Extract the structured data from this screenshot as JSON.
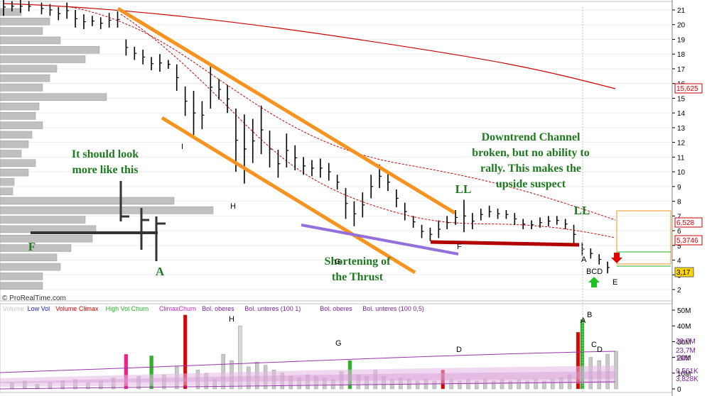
{
  "watermark": "© ProRealTime.com",
  "price_axis_ticks": [
    "21",
    "20",
    "19",
    "18",
    "17",
    "16",
    "15",
    "14",
    "13",
    "12",
    "11",
    "10",
    "9",
    "8",
    "7",
    "6",
    "5",
    "4",
    "3",
    "2"
  ],
  "price_axis_badges": {
    "ma_long": "15,625",
    "ma_mid": "6,528",
    "ma_short": "5,3746",
    "last": "3,17"
  },
  "annotations": {
    "should_look_1": "It should look",
    "should_look_2": "more like this",
    "downtrend_1": "Downtrend Channel",
    "downtrend_2": "broken, but no ability to",
    "downtrend_3": "rally.  This makes the",
    "downtrend_4": "upside suspect",
    "shortening_1": "Shortening of",
    "shortening_2": "the Thrust",
    "ll_1": "LL",
    "ll_2": "LL",
    "F_green": "F",
    "A_green": "A"
  },
  "price_points": {
    "I": "I",
    "H": "H",
    "G": "G",
    "F": "F",
    "A": "A",
    "BCD": "BCD",
    "E": "E"
  },
  "volume_panel": {
    "legend": [
      {
        "text": "Volume",
        "color": "#c8c8c8"
      },
      {
        "text": "Low Vol",
        "color": "#2020c0"
      },
      {
        "text": "Volume Climax",
        "color": "#e00000"
      },
      {
        "text": "High Vol Churn",
        "color": "#20b020"
      },
      {
        "text": "ClimaxChurn",
        "color": "#d020d0"
      },
      {
        "text": "Bol. oberes",
        "color": "#8020a0"
      },
      {
        "text": "Bol. unteres (100 1)",
        "color": "#8020a0"
      },
      {
        "text": "Bol. oberes",
        "color": "#8020a0"
      },
      {
        "text": "Bol. unteres (100 0,5)",
        "color": "#8020a0"
      }
    ],
    "axis_ticks": [
      "50M",
      "40M",
      "30M",
      "20M",
      "10M",
      "0"
    ],
    "badges": [
      "29,7M",
      "23,7M",
      "19M",
      "9,561K",
      "3,828K"
    ],
    "labels": {
      "H": "H",
      "G": "G",
      "D1": "D",
      "A": "A",
      "B": "B",
      "C": "C",
      "D2": "D"
    }
  },
  "chart_data": {
    "type": "ohlc",
    "y_range": [
      1.5,
      21.5
    ],
    "x_index_range": [
      0,
      145
    ],
    "bars": [
      {
        "i": 0,
        "h": 21.8,
        "l": 20.6
      },
      {
        "i": 2,
        "h": 21.6,
        "l": 20.9
      },
      {
        "i": 4,
        "h": 21.7,
        "l": 20.8
      },
      {
        "i": 6,
        "h": 21.6,
        "l": 20.9
      },
      {
        "i": 9,
        "h": 21.5,
        "l": 20.7
      },
      {
        "i": 11,
        "h": 21.4,
        "l": 20.6
      },
      {
        "i": 13,
        "h": 21.2,
        "l": 20.3
      },
      {
        "i": 15,
        "h": 21.5,
        "l": 20.4
      },
      {
        "i": 17,
        "h": 21.0,
        "l": 19.8
      },
      {
        "i": 19,
        "h": 20.7,
        "l": 19.7
      },
      {
        "i": 21,
        "h": 20.6,
        "l": 19.9
      },
      {
        "i": 23,
        "h": 20.5,
        "l": 19.7
      },
      {
        "i": 25,
        "h": 20.8,
        "l": 19.8
      },
      {
        "i": 27,
        "h": 20.9,
        "l": 19.8
      },
      {
        "i": 29,
        "h": 19.0,
        "l": 17.9
      },
      {
        "i": 31,
        "h": 18.5,
        "l": 17.6
      },
      {
        "i": 33,
        "h": 18.3,
        "l": 17.3
      },
      {
        "i": 35,
        "h": 17.8,
        "l": 16.9
      },
      {
        "i": 37,
        "h": 18.0,
        "l": 16.8
      },
      {
        "i": 39,
        "h": 17.6,
        "l": 17.0
      },
      {
        "i": 41,
        "h": 17.3,
        "l": 15.5
      },
      {
        "i": 43,
        "h": 15.8,
        "l": 13.8
      },
      {
        "i": 45,
        "h": 15.5,
        "l": 12.5
      },
      {
        "i": 47,
        "h": 14.8,
        "l": 12.9
      },
      {
        "i": 49,
        "h": 17.2,
        "l": 14.3
      },
      {
        "i": 51,
        "h": 16.3,
        "l": 14.9
      },
      {
        "i": 53,
        "h": 15.9,
        "l": 14.0
      },
      {
        "i": 55,
        "h": 14.3,
        "l": 10.0
      },
      {
        "i": 57,
        "h": 13.9,
        "l": 9.2
      },
      {
        "i": 59,
        "h": 13.6,
        "l": 10.6
      },
      {
        "i": 61,
        "h": 14.5,
        "l": 11.2
      },
      {
        "i": 63,
        "h": 12.8,
        "l": 10.3
      },
      {
        "i": 65,
        "h": 11.5,
        "l": 9.6
      },
      {
        "i": 67,
        "h": 12.6,
        "l": 10.3
      },
      {
        "i": 69,
        "h": 11.8,
        "l": 10.1
      },
      {
        "i": 71,
        "h": 11.0,
        "l": 9.8
      },
      {
        "i": 73,
        "h": 10.8,
        "l": 9.7
      },
      {
        "i": 75,
        "h": 10.9,
        "l": 9.6
      },
      {
        "i": 77,
        "h": 10.6,
        "l": 9.4
      },
      {
        "i": 79,
        "h": 9.8,
        "l": 8.8
      },
      {
        "i": 81,
        "h": 8.9,
        "l": 6.8
      },
      {
        "i": 83,
        "h": 8.0,
        "l": 6.3
      },
      {
        "i": 85,
        "h": 8.6,
        "l": 6.9
      },
      {
        "i": 87,
        "h": 9.8,
        "l": 8.2
      },
      {
        "i": 89,
        "h": 10.5,
        "l": 8.9
      },
      {
        "i": 91,
        "h": 9.9,
        "l": 8.7
      },
      {
        "i": 93,
        "h": 8.8,
        "l": 7.6
      },
      {
        "i": 95,
        "h": 7.9,
        "l": 6.7
      },
      {
        "i": 97,
        "h": 7.0,
        "l": 6.2
      },
      {
        "i": 99,
        "h": 6.4,
        "l": 5.5
      },
      {
        "i": 101,
        "h": 6.2,
        "l": 5.3
      },
      {
        "i": 103,
        "h": 6.7,
        "l": 5.5
      },
      {
        "i": 105,
        "h": 7.0,
        "l": 6.1
      },
      {
        "i": 107,
        "h": 7.4,
        "l": 6.4
      },
      {
        "i": 109,
        "h": 8.1,
        "l": 5.9
      },
      {
        "i": 111,
        "h": 7.2,
        "l": 6.1
      },
      {
        "i": 113,
        "h": 7.5,
        "l": 6.7
      },
      {
        "i": 115,
        "h": 7.7,
        "l": 6.9
      },
      {
        "i": 117,
        "h": 7.5,
        "l": 6.8
      },
      {
        "i": 119,
        "h": 7.4,
        "l": 6.8
      },
      {
        "i": 121,
        "h": 7.2,
        "l": 6.4
      },
      {
        "i": 123,
        "h": 6.8,
        "l": 6.1
      },
      {
        "i": 125,
        "h": 6.7,
        "l": 6.1
      },
      {
        "i": 127,
        "h": 6.9,
        "l": 6.2
      },
      {
        "i": 129,
        "h": 7.0,
        "l": 6.3
      },
      {
        "i": 131,
        "h": 7.0,
        "l": 6.4
      },
      {
        "i": 133,
        "h": 6.8,
        "l": 6.1
      },
      {
        "i": 135,
        "h": 6.4,
        "l": 5.1
      },
      {
        "i": 137,
        "h": 5.2,
        "l": 4.3
      },
      {
        "i": 139,
        "h": 4.8,
        "l": 4.1
      },
      {
        "i": 141,
        "h": 4.4,
        "l": 3.7
      },
      {
        "i": 143,
        "h": 3.9,
        "l": 3.1
      }
    ],
    "volume_bars": [
      {
        "i": 2,
        "v": 4
      },
      {
        "i": 5,
        "v": 5
      },
      {
        "i": 8,
        "v": 3
      },
      {
        "i": 11,
        "v": 4
      },
      {
        "i": 14,
        "v": 5
      },
      {
        "i": 17,
        "v": 6
      },
      {
        "i": 20,
        "v": 4
      },
      {
        "i": 23,
        "v": 5
      },
      {
        "i": 26,
        "v": 7
      },
      {
        "i": 29,
        "v": 22
      },
      {
        "i": 32,
        "v": 8
      },
      {
        "i": 35,
        "v": 21
      },
      {
        "i": 38,
        "v": 9
      },
      {
        "i": 41,
        "v": 14
      },
      {
        "i": 43,
        "v": 47
      },
      {
        "i": 46,
        "v": 12
      },
      {
        "i": 48,
        "v": 10
      },
      {
        "i": 50,
        "v": 6
      },
      {
        "i": 52,
        "v": 22
      },
      {
        "i": 54,
        "v": 18
      },
      {
        "i": 56,
        "v": 40
      },
      {
        "i": 58,
        "v": 14
      },
      {
        "i": 60,
        "v": 17
      },
      {
        "i": 62,
        "v": 15
      },
      {
        "i": 64,
        "v": 12
      },
      {
        "i": 66,
        "v": 10
      },
      {
        "i": 68,
        "v": 8
      },
      {
        "i": 70,
        "v": 7
      },
      {
        "i": 72,
        "v": 9
      },
      {
        "i": 74,
        "v": 8
      },
      {
        "i": 76,
        "v": 7
      },
      {
        "i": 78,
        "v": 6
      },
      {
        "i": 80,
        "v": 11
      },
      {
        "i": 82,
        "v": 18
      },
      {
        "i": 84,
        "v": 9
      },
      {
        "i": 86,
        "v": 8
      },
      {
        "i": 88,
        "v": 12
      },
      {
        "i": 90,
        "v": 8
      },
      {
        "i": 92,
        "v": 6
      },
      {
        "i": 94,
        "v": 7
      },
      {
        "i": 96,
        "v": 6
      },
      {
        "i": 98,
        "v": 5
      },
      {
        "i": 100,
        "v": 6
      },
      {
        "i": 102,
        "v": 5
      },
      {
        "i": 104,
        "v": 12
      },
      {
        "i": 106,
        "v": 6
      },
      {
        "i": 108,
        "v": 5
      },
      {
        "i": 110,
        "v": 6
      },
      {
        "i": 112,
        "v": 5
      },
      {
        "i": 114,
        "v": 6
      },
      {
        "i": 116,
        "v": 5
      },
      {
        "i": 118,
        "v": 6
      },
      {
        "i": 120,
        "v": 5
      },
      {
        "i": 122,
        "v": 6
      },
      {
        "i": 124,
        "v": 5
      },
      {
        "i": 126,
        "v": 6
      },
      {
        "i": 128,
        "v": 5
      },
      {
        "i": 130,
        "v": 6
      },
      {
        "i": 132,
        "v": 7
      },
      {
        "i": 134,
        "v": 9
      },
      {
        "i": 136,
        "v": 36
      },
      {
        "i": 137,
        "v": 44
      },
      {
        "i": 139,
        "v": 20
      },
      {
        "i": 141,
        "v": 18
      },
      {
        "i": 143,
        "v": 22
      },
      {
        "i": 145,
        "v": 24
      }
    ]
  }
}
